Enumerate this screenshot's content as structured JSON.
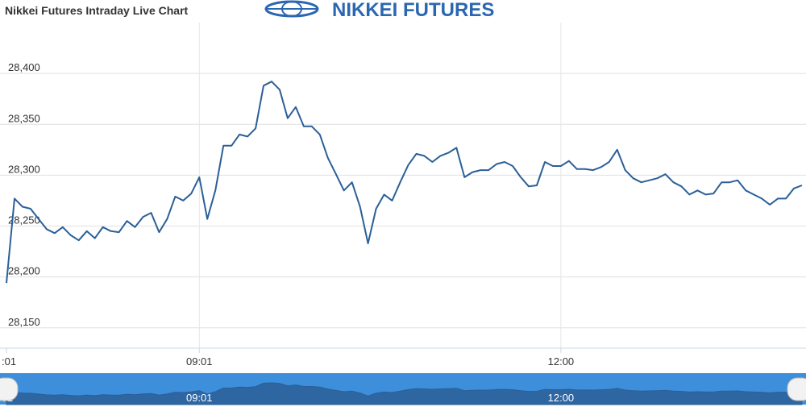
{
  "header": {
    "logo": "NIKKEI FUTURES"
  },
  "chart_data": {
    "type": "line",
    "title": "Nikkei Futures Intraday Live Chart",
    "series": [
      {
        "name": "Nikkei Futures",
        "color": "#2b5f98",
        "values": [
          28194,
          28277,
          28269,
          28267,
          28257,
          28247,
          28243,
          28249,
          28241,
          28236,
          28245,
          28238,
          28249,
          28245,
          28244,
          28255,
          28249,
          28259,
          28263,
          28244,
          28257,
          28279,
          28275,
          28282,
          28298,
          28257,
          28285,
          28329,
          28329,
          28340,
          28338,
          28346,
          28388,
          28392,
          28384,
          28356,
          28367,
          28348,
          28348,
          28340,
          28317,
          28301,
          28285,
          28293,
          28269,
          28233,
          28267,
          28281,
          28275,
          28293,
          28310,
          28321,
          28319,
          28313,
          28319,
          28322,
          28327,
          28298,
          28303,
          28305,
          28305,
          28311,
          28313,
          28309,
          28298,
          28289,
          28290,
          28313,
          28309,
          28309,
          28314,
          28306,
          28306,
          28305,
          28308,
          28313,
          28325,
          28305,
          28297,
          28293,
          28295,
          28297,
          28301,
          28293,
          28289,
          28281,
          28285,
          28281,
          28282,
          28293,
          28293,
          28295,
          28285,
          28281,
          28277,
          28271,
          28277,
          28277,
          28287,
          28290
        ]
      }
    ],
    "xlim": [
      0,
      99
    ],
    "xticks": [
      {
        "value": 0,
        "label": ":01"
      },
      {
        "value": 24,
        "label": "09:01"
      },
      {
        "value": 69,
        "label": "12:00"
      }
    ],
    "ylim": [
      28130,
      28450
    ],
    "yticks": [
      {
        "value": 28150,
        "label": "28,150"
      },
      {
        "value": 28200,
        "label": "28,200"
      },
      {
        "value": 28250,
        "label": "28,250"
      },
      {
        "value": 28300,
        "label": "28,300"
      },
      {
        "value": 28350,
        "label": "28,350"
      },
      {
        "value": 28400,
        "label": "28,400"
      }
    ],
    "grid": true,
    "navigator_color": "#3d8fdc"
  }
}
